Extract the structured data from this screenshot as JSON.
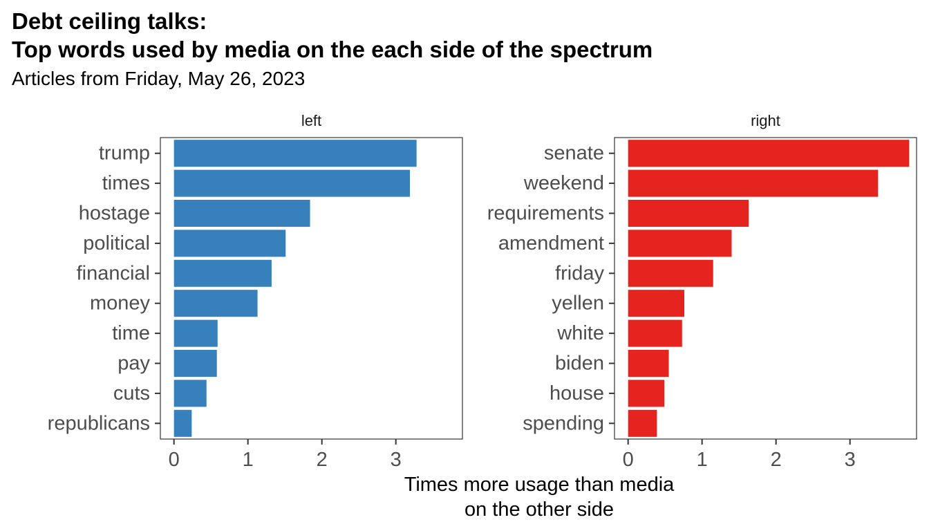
{
  "chart_data": {
    "type": "bar",
    "title_line1": "Debt ceiling talks:",
    "title_line2": "Top words used by media on the each side of the spectrum",
    "subtitle": "Articles from Friday, May 26, 2023",
    "xlabel_line1": "Times more usage than media",
    "xlabel_line2": "on the other side",
    "xlim": [
      0,
      3.9
    ],
    "xticks": [
      0,
      1,
      2,
      3
    ],
    "panels": [
      {
        "name": "left",
        "color": "#3880BB",
        "categories": [
          "trump",
          "times",
          "hostage",
          "political",
          "financial",
          "money",
          "time",
          "pay",
          "cuts",
          "republicans"
        ],
        "values": [
          3.28,
          3.19,
          1.84,
          1.51,
          1.32,
          1.13,
          0.59,
          0.58,
          0.44,
          0.24
        ]
      },
      {
        "name": "right",
        "color": "#E5231F",
        "categories": [
          "senate",
          "weekend",
          "requirements",
          "amendment",
          "friday",
          "yellen",
          "white",
          "biden",
          "house",
          "spending"
        ],
        "values": [
          3.8,
          3.38,
          1.63,
          1.4,
          1.15,
          0.76,
          0.73,
          0.55,
          0.49,
          0.39
        ]
      }
    ]
  }
}
